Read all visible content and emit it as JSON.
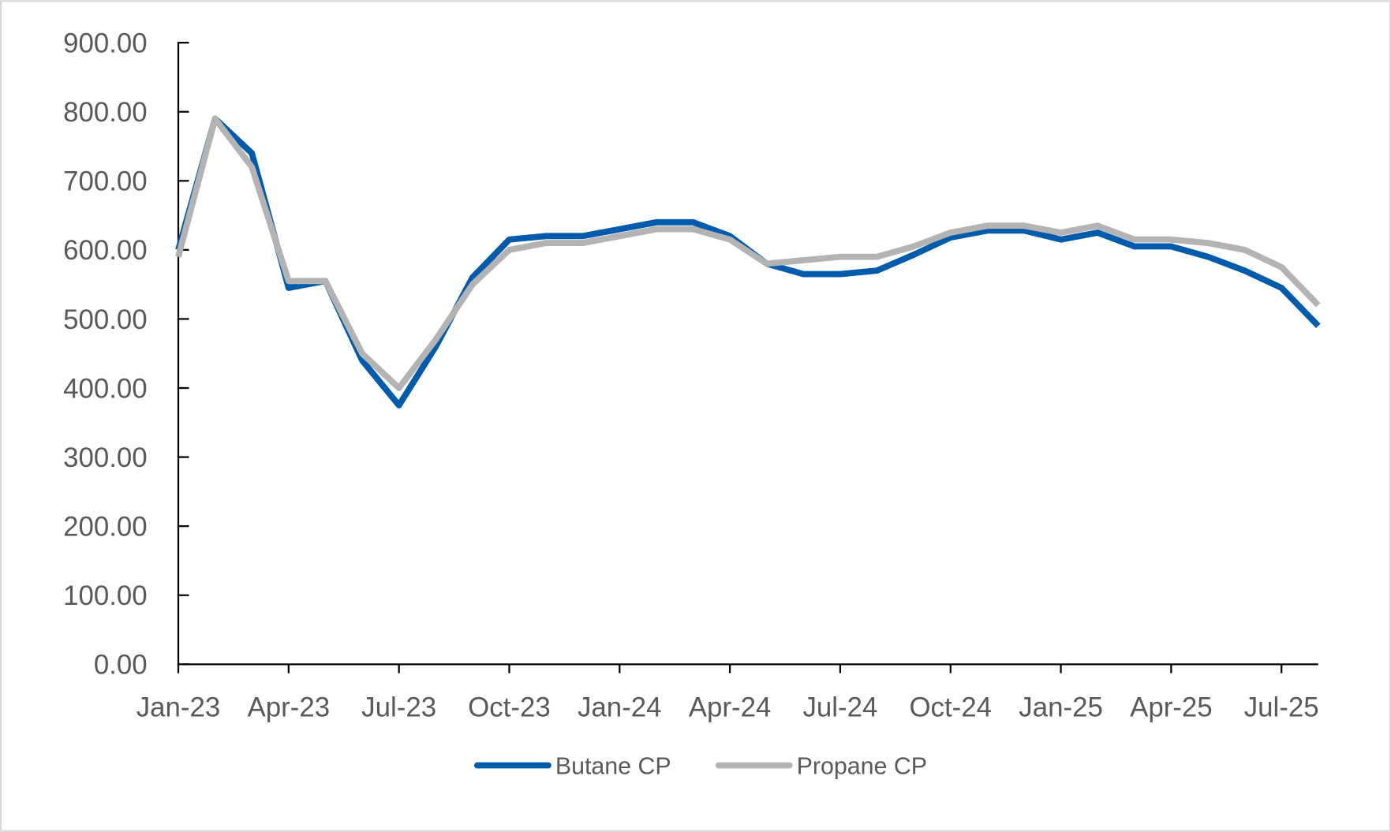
{
  "chart_data": {
    "type": "line",
    "title": "",
    "xlabel": "",
    "ylabel": "",
    "ylim": [
      0,
      900
    ],
    "y_ticks": [
      "0.00",
      "100.00",
      "200.00",
      "300.00",
      "400.00",
      "500.00",
      "600.00",
      "700.00",
      "800.00",
      "900.00"
    ],
    "x_tick_labels": [
      "Jan-23",
      "Apr-23",
      "Jul-23",
      "Oct-23",
      "Jan-24",
      "Apr-24",
      "Jul-24",
      "Oct-24",
      "Jan-25",
      "Apr-25",
      "Jul-25"
    ],
    "x": [
      "Jan-23",
      "Feb-23",
      "Mar-23",
      "Apr-23",
      "May-23",
      "Jun-23",
      "Jul-23",
      "Aug-23",
      "Sep-23",
      "Oct-23",
      "Nov-23",
      "Dec-23",
      "Jan-24",
      "Feb-24",
      "Mar-24",
      "Apr-24",
      "May-24",
      "Jun-24",
      "Jul-24",
      "Aug-24",
      "Sep-24",
      "Oct-24",
      "Nov-24",
      "Dec-24",
      "Jan-25",
      "Feb-25",
      "Mar-25",
      "Apr-25",
      "May-25",
      "Jun-25",
      "Jul-25",
      "Aug-25"
    ],
    "grid": false,
    "legend_position": "bottom",
    "series": [
      {
        "name": "Butane  CP",
        "color": "#005bac",
        "values": [
          600,
          790,
          740,
          545,
          555,
          440,
          375,
          460,
          560,
          615,
          620,
          620,
          630,
          640,
          640,
          620,
          580,
          565,
          565,
          570,
          593,
          618,
          628,
          628,
          615,
          625,
          605,
          605,
          590,
          570,
          545,
          490
        ]
      },
      {
        "name": "Propane  CP",
        "color": "#b3b3b3",
        "values": [
          590,
          790,
          720,
          555,
          555,
          450,
          400,
          470,
          550,
          600,
          610,
          610,
          620,
          630,
          630,
          615,
          580,
          585,
          590,
          590,
          605,
          625,
          635,
          635,
          625,
          635,
          615,
          615,
          610,
          600,
          575,
          520
        ]
      }
    ]
  }
}
